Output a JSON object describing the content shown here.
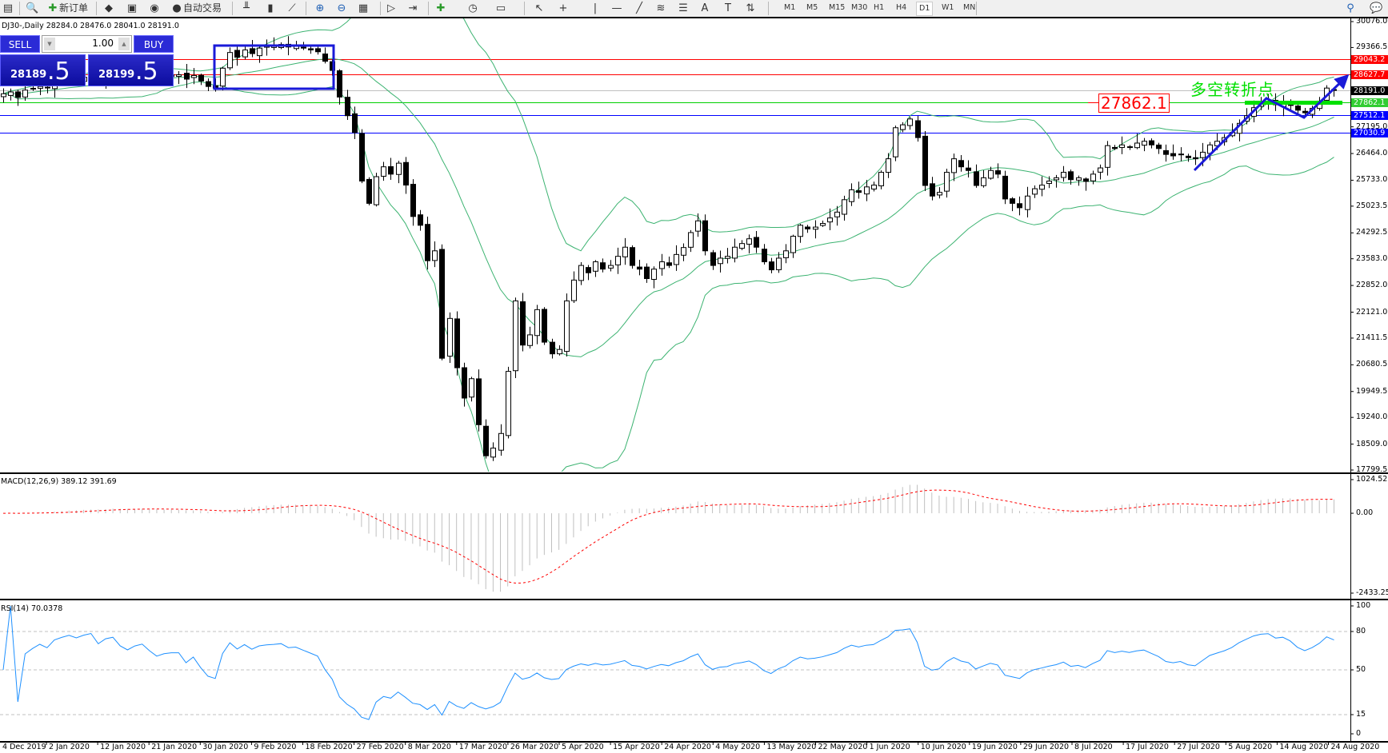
{
  "toolbar": {
    "new_order_label": "新订单",
    "auto_trading_label": "自动交易",
    "icons": [
      "new-chart-icon",
      "print-preview-icon",
      "new-order-icon",
      "market-watch-icon",
      "navigator-icon",
      "signals-icon",
      "auto-trading-icon",
      "bar-chart-icon",
      "candlestick-icon",
      "line-chart-icon",
      "zoom-in-icon",
      "zoom-out-icon",
      "tile-windows-icon",
      "auto-scroll-icon",
      "chart-shift-icon",
      "indicators-icon",
      "periods-icon",
      "templates-icon",
      "cursor-icon",
      "crosshair-icon",
      "vertical-line-icon",
      "horizontal-line-icon",
      "trendline-icon",
      "fibonacci-icon",
      "fibo-fan-icon",
      "text-icon",
      "text-label-icon",
      "arrows-icon",
      "search-icon",
      "chat-icon"
    ],
    "timeframes": [
      "M1",
      "M5",
      "M15",
      "M30",
      "H1",
      "H4",
      "D1",
      "W1",
      "MN"
    ],
    "active_timeframe": "D1"
  },
  "chart": {
    "title": "DJ30-,Daily  28284.0 28476.0 28041.0 28191.0",
    "symbol": "DJ30-",
    "period": "Daily",
    "ohlc_current": {
      "open": 28284.0,
      "high": 28476.0,
      "low": 28041.0,
      "close": 28191.0
    }
  },
  "trade_panel": {
    "sell_label": "SELL",
    "buy_label": "BUY",
    "lot": "1.00",
    "sell_price_main": "28189",
    "sell_price_big": ".5",
    "buy_price_main": "28199",
    "buy_price_big": ".5"
  },
  "annotations": {
    "price_label": "27862.1",
    "pivot_text": "多空转折点",
    "colors": {
      "resistance": "#ff0000",
      "pivot": "#00e000",
      "support": "#0000ff",
      "arrow": "#1a1ad8"
    }
  },
  "chart_data": {
    "type": "candlestick",
    "price_axis": {
      "min": 17799.5,
      "max": 30076.0,
      "ticks": [
        "30076.0",
        "29366.5",
        "27195.0",
        "26464.0",
        "25733.0",
        "25023.5",
        "24292.5",
        "23583.0",
        "22852.0",
        "22121.0",
        "21411.5",
        "20680.5",
        "19949.5",
        "19240.0",
        "18509.0",
        "17799.5"
      ]
    },
    "horizontal_lines": [
      {
        "value": "29043.2",
        "color": "#ff0000"
      },
      {
        "value": "28627.7",
        "color": "#ff0000"
      },
      {
        "value": "28191.0",
        "color": "#000000"
      },
      {
        "value": "27862.1",
        "color": "#32cd32"
      },
      {
        "value": "27512.1",
        "color": "#0000ff"
      },
      {
        "value": "27030.9",
        "color": "#0000ff"
      }
    ],
    "closes": [
      28100,
      28150,
      28000,
      28200,
      28250,
      28300,
      28280,
      28400,
      28450,
      28500,
      28480,
      28550,
      28600,
      28500,
      28650,
      28700,
      28600,
      28550,
      28650,
      28700,
      28620,
      28550,
      28600,
      28620,
      28620,
      28500,
      28600,
      28450,
      28300,
      28256,
      28800,
      29230,
      29100,
      29300,
      29200,
      29350,
      29400,
      29420,
      29450,
      29380,
      29400,
      29350,
      29300,
      29250,
      28990,
      28740,
      28010,
      27500,
      27040,
      25710,
      25100,
      25830,
      26100,
      25900,
      26200,
      25600,
      24740,
      24500,
      23530,
      23800,
      20860,
      21950,
      20600,
      19770,
      20300,
      19040,
      18190,
      18400,
      18800,
      20500,
      22430,
      21220,
      21500,
      22190,
      21300,
      20980,
      21100,
      22430,
      23000,
      23400,
      23200,
      23500,
      23300,
      23400,
      23650,
      23900,
      23400,
      23300,
      23040,
      23300,
      23500,
      23400,
      23700,
      23890,
      24300,
      24620,
      23800,
      23400,
      23600,
      23650,
      23900,
      24000,
      24130,
      23900,
      23500,
      23280,
      23600,
      23800,
      24200,
      24500,
      24400,
      24450,
      24550,
      24700,
      24860,
      25200,
      25470,
      25400,
      25550,
      25600,
      25950,
      26320,
      27170,
      27250,
      27410,
      26900,
      25590,
      25300,
      25400,
      25950,
      26320,
      26100,
      26000,
      25590,
      25800,
      26000,
      25900,
      25220,
      25100,
      24980,
      25300,
      25500,
      25600,
      25710,
      25800,
      25950,
      25750,
      25800,
      25700,
      25900,
      26070,
      26680,
      26600,
      26700,
      26650,
      26750,
      26800,
      26700,
      26600,
      26440,
      26400,
      26450,
      26350,
      26320,
      26500,
      26700,
      26800,
      26900,
      27040,
      27290,
      27500,
      27720,
      27850,
      27890,
      27800,
      27850,
      27780,
      27650,
      27580,
      27700,
      27900,
      28256,
      28191
    ],
    "dates": [
      "4 Dec 2019",
      "2 Jan 2020",
      "12 Jan 2020",
      "21 Jan 2020",
      "30 Jan 2020",
      "9 Feb 2020",
      "18 Feb 2020",
      "27 Feb 2020",
      "8 Mar 2020",
      "17 Mar 2020",
      "26 Mar 2020",
      "5 Apr 2020",
      "15 Apr 2020",
      "24 Apr 2020",
      "4 May 2020",
      "13 May 2020",
      "22 May 2020",
      "1 Jun 2020",
      "10 Jun 2020",
      "19 Jun 2020",
      "29 Jun 2020",
      "8 Jul 2020",
      "17 Jul 2020",
      "27 Jul 2020",
      "5 Aug 2020",
      "14 Aug 2020",
      "24 Aug 2020"
    ],
    "indicators": {
      "bollinger": {
        "color": "#3cb371"
      },
      "macd": {
        "label": "MACD(12,26,9) 389.12 391.69",
        "max": "1024.52",
        "zero": "0.00",
        "min": "-2433.25",
        "signal_color": "#ff0000",
        "hist_color": "#c0c0c0"
      },
      "rsi": {
        "label": "RSI(14) 70.0378",
        "levels": [
          "100",
          "80",
          "50",
          "15",
          "0"
        ],
        "color": "#1e90ff"
      }
    }
  }
}
